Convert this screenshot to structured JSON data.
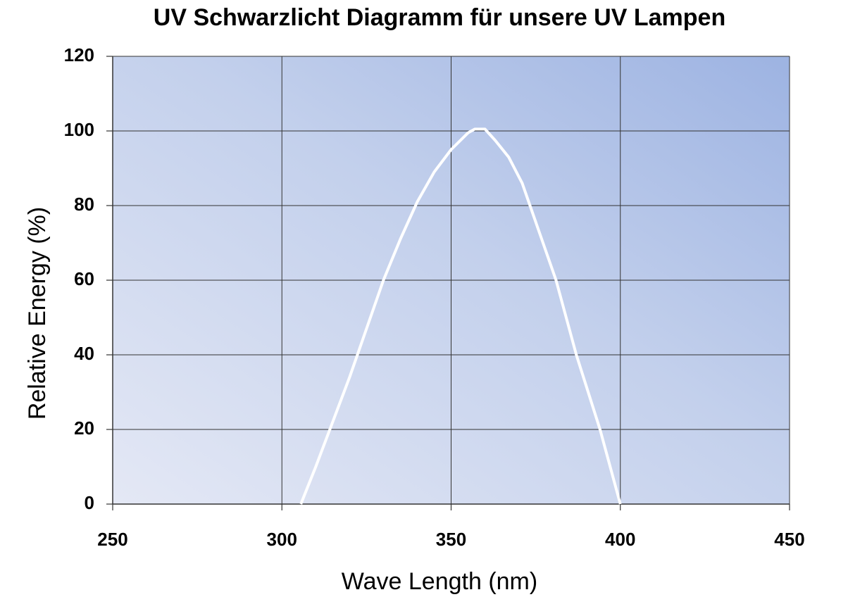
{
  "chart_data": {
    "type": "line",
    "title": "UV Schwarzlicht Diagramm für unsere UV Lampen",
    "x_label": "Wave Length (nm)",
    "y_label": "Relative  Energy (%)",
    "x": [
      305.6,
      310,
      315,
      320,
      325,
      330,
      335,
      340,
      345,
      350,
      355,
      357,
      360,
      363,
      367,
      371,
      376,
      381,
      387,
      394,
      400
    ],
    "series": [
      {
        "color": "#ffffff",
        "values": [
          0,
          10,
          22,
          34,
          47,
          60,
          71,
          81,
          89,
          95,
          99.5,
          100.5,
          100.5,
          97.5,
          93,
          86,
          73,
          60,
          40,
          20,
          0
        ]
      }
    ],
    "xlim": [
      250,
      450
    ],
    "xticks": [
      250,
      300,
      350,
      400,
      450
    ],
    "ylim": [
      0,
      120
    ],
    "yticks": [
      0,
      20,
      40,
      60,
      80,
      100,
      120
    ],
    "grid": true
  }
}
